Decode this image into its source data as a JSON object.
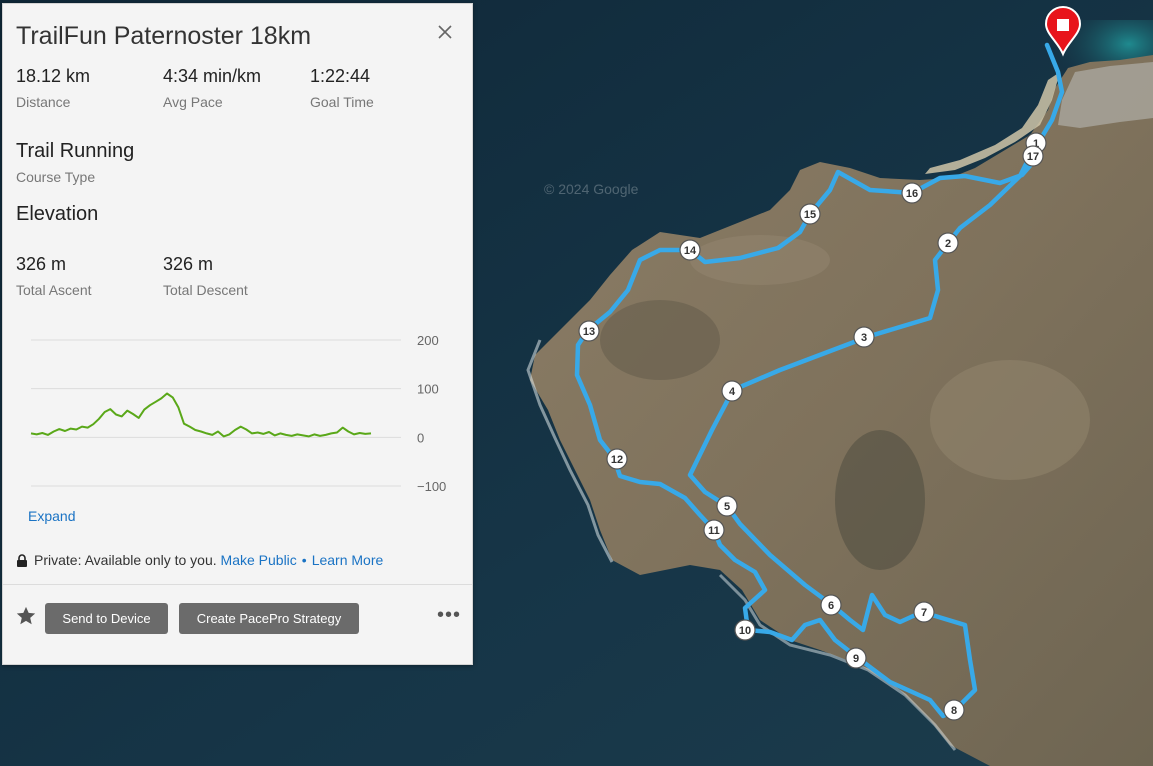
{
  "course": {
    "title": "TrailFun Paternoster 18km",
    "stats": [
      {
        "value": "18.12 km",
        "label": "Distance"
      },
      {
        "value": "4:34 min/km",
        "label": "Avg Pace"
      },
      {
        "value": "1:22:44",
        "label": "Goal Time"
      }
    ],
    "course_type_value": "Trail Running",
    "course_type_label": "Course Type",
    "elevation_heading": "Elevation",
    "ascent_value": "326 m",
    "ascent_label": "Total Ascent",
    "descent_value": "326 m",
    "descent_label": "Total Descent"
  },
  "chart_data": {
    "type": "line",
    "title": "",
    "xlabel": "",
    "ylabel": "",
    "ylim": [
      -100,
      200
    ],
    "y_ticks": [
      "200",
      "100",
      "0",
      "−100"
    ],
    "grid": true,
    "series": [
      {
        "color": "#5aa819",
        "x": [
          0,
          0.3,
          0.6,
          0.9,
          1.2,
          1.5,
          1.8,
          2.1,
          2.4,
          2.7,
          3.0,
          3.3,
          3.6,
          3.9,
          4.2,
          4.5,
          4.8,
          5.1,
          5.4,
          5.7,
          6.0,
          6.3,
          6.6,
          6.9,
          7.2,
          7.5,
          7.8,
          8.1,
          8.4,
          8.7,
          9.0,
          9.3,
          9.6,
          9.9,
          10.2,
          10.5,
          10.8,
          11.1,
          11.4,
          11.7,
          12.0,
          12.3,
          12.6,
          12.9,
          13.2,
          13.5,
          13.8,
          14.1,
          14.4,
          14.7,
          15.0,
          15.3,
          15.6,
          15.9,
          16.2,
          16.5,
          16.8,
          17.1,
          17.4,
          17.7,
          18.0
        ],
        "values": [
          8,
          6,
          9,
          5,
          12,
          17,
          13,
          18,
          16,
          22,
          20,
          27,
          38,
          52,
          58,
          47,
          43,
          55,
          48,
          40,
          57,
          66,
          73,
          80,
          90,
          82,
          62,
          28,
          22,
          15,
          12,
          8,
          5,
          12,
          2,
          6,
          15,
          22,
          16,
          8,
          10,
          7,
          11,
          4,
          8,
          5,
          3,
          6,
          4,
          2,
          6,
          3,
          5,
          8,
          10,
          20,
          12,
          6,
          9,
          7,
          8
        ]
      }
    ]
  },
  "expand_label": "Expand",
  "privacy": {
    "text": "Private: Available only to you.",
    "make_public": "Make Public",
    "separator": "•",
    "learn_more": "Learn More"
  },
  "actions": {
    "send_label": "Send to Device",
    "pacepro_label": "Create PacePro Strategy",
    "more_label": "•••"
  },
  "map": {
    "watermark": "© 2024 Google",
    "markers": [
      "1",
      "2",
      "3",
      "4",
      "5",
      "6",
      "7",
      "8",
      "9",
      "10",
      "11",
      "12",
      "13",
      "14",
      "15",
      "16",
      "17"
    ],
    "route_color": "#38a9e8",
    "pin_color": "#e8141b"
  }
}
